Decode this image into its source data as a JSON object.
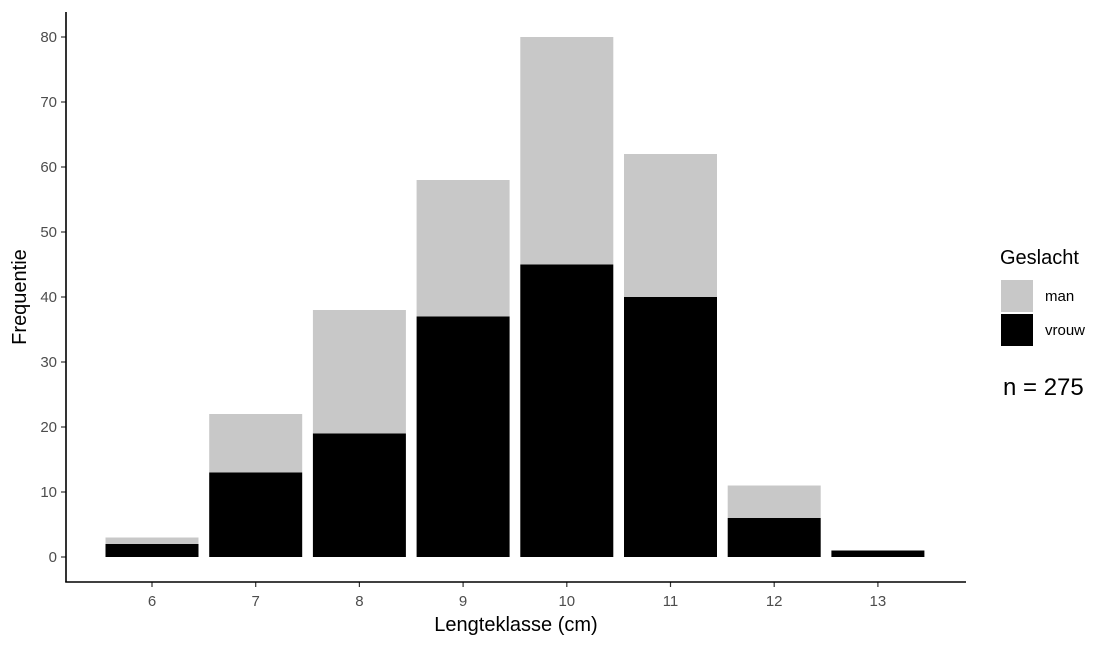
{
  "chart_data": {
    "type": "bar",
    "stacked": true,
    "categories": [
      "6",
      "7",
      "8",
      "9",
      "10",
      "11",
      "12",
      "13"
    ],
    "series": [
      {
        "name": "vrouw",
        "color": "#000000",
        "values": [
          2,
          13,
          19,
          37,
          45,
          40,
          6,
          1
        ]
      },
      {
        "name": "man",
        "color": "#c8c8c8",
        "values": [
          1,
          9,
          19,
          21,
          35,
          22,
          5,
          0
        ]
      }
    ],
    "title": "",
    "xlabel": "Lengteklasse (cm)",
    "ylabel": "Frequentie",
    "ylim": [
      0,
      80
    ],
    "yticks": [
      0,
      10,
      20,
      30,
      40,
      50,
      60,
      70,
      80
    ],
    "grid": false,
    "legend": {
      "title": "Geslacht",
      "position": "right",
      "entries": [
        {
          "label": "man",
          "color": "#c8c8c8"
        },
        {
          "label": "vrouw",
          "color": "#000000"
        }
      ]
    },
    "annotation": "n = 275"
  }
}
